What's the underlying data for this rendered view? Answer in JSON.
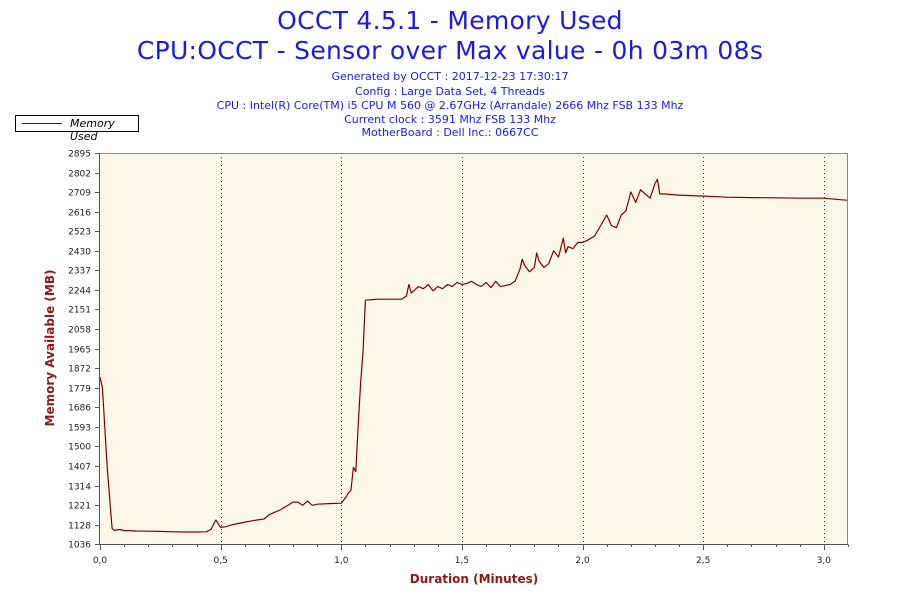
{
  "header": {
    "title": "OCCT 4.5.1 - Memory Used",
    "subtitle": "CPU:OCCT - Sensor over Max value - 0h 03m 08s",
    "info_lines": [
      "Generated by OCCT : 2017-12-23 17:30:17",
      "Config : Large Data Set, 4 Threads",
      "CPU : Intel(R) Core(TM) i5 CPU M 560 @ 2.67GHz (Arrandale) 2666 Mhz FSB 133 Mhz",
      "Current clock : 3591 Mhz FSB 133 Mhz",
      "MotherBoard : Dell Inc.: 0667CC"
    ]
  },
  "legend": {
    "label": "Memory Used"
  },
  "colors": {
    "title": "#1a1ae6",
    "series": "#800000",
    "axis_label": "#8b1a1a",
    "plot_background": "#fdf8e8"
  },
  "chart_data": {
    "type": "line",
    "title": "OCCT 4.5.1 - Memory Used",
    "xlabel": "Duration (Minutes)",
    "ylabel": "Memory Available (MB)",
    "xlim": [
      0,
      3.1
    ],
    "ylim": [
      1036,
      2895
    ],
    "x_ticks": [
      "0,0",
      "0,5",
      "1,0",
      "1,5",
      "2,0",
      "2,5",
      "3,0"
    ],
    "y_ticks": [
      "1036",
      "1128",
      "1221",
      "1314",
      "1407",
      "1500",
      "1593",
      "1686",
      "1779",
      "1872",
      "1965",
      "2058",
      "2151",
      "2244",
      "2337",
      "2430",
      "2523",
      "2616",
      "2709",
      "2802",
      "2895"
    ],
    "grid": "vertical dotted lines at major x ticks",
    "legend_position": "top-left",
    "series": [
      {
        "name": "Memory Used",
        "x": [
          0.0,
          0.01,
          0.03,
          0.05,
          0.06,
          0.08,
          0.1,
          0.15,
          0.2,
          0.25,
          0.3,
          0.35,
          0.4,
          0.44,
          0.46,
          0.48,
          0.5,
          0.52,
          0.55,
          0.6,
          0.65,
          0.68,
          0.7,
          0.75,
          0.8,
          0.82,
          0.84,
          0.86,
          0.88,
          0.9,
          0.95,
          1.0,
          1.02,
          1.03,
          1.04,
          1.05,
          1.06,
          1.07,
          1.08,
          1.09,
          1.1,
          1.15,
          1.2,
          1.25,
          1.27,
          1.28,
          1.29,
          1.3,
          1.32,
          1.34,
          1.36,
          1.38,
          1.4,
          1.42,
          1.44,
          1.46,
          1.48,
          1.5,
          1.52,
          1.54,
          1.56,
          1.58,
          1.6,
          1.62,
          1.64,
          1.66,
          1.7,
          1.72,
          1.74,
          1.75,
          1.76,
          1.78,
          1.8,
          1.81,
          1.82,
          1.84,
          1.86,
          1.88,
          1.9,
          1.92,
          1.93,
          1.94,
          1.96,
          1.98,
          2.0,
          2.02,
          2.05,
          2.08,
          2.1,
          2.12,
          2.14,
          2.16,
          2.18,
          2.2,
          2.22,
          2.24,
          2.26,
          2.28,
          2.3,
          2.31,
          2.32,
          2.34,
          2.4,
          2.5,
          2.6,
          2.7,
          2.8,
          2.9,
          3.0,
          3.05,
          3.1
        ],
        "values": [
          1830,
          1780,
          1400,
          1110,
          1100,
          1105,
          1100,
          1098,
          1097,
          1096,
          1094,
          1093,
          1093,
          1094,
          1105,
          1150,
          1115,
          1118,
          1128,
          1140,
          1150,
          1155,
          1175,
          1200,
          1235,
          1235,
          1220,
          1240,
          1220,
          1225,
          1228,
          1230,
          1260,
          1280,
          1290,
          1400,
          1380,
          1600,
          1800,
          1950,
          2195,
          2200,
          2200,
          2200,
          2215,
          2270,
          2230,
          2240,
          2260,
          2250,
          2270,
          2240,
          2260,
          2250,
          2270,
          2260,
          2280,
          2270,
          2275,
          2285,
          2270,
          2260,
          2280,
          2255,
          2285,
          2260,
          2270,
          2285,
          2340,
          2390,
          2360,
          2330,
          2350,
          2420,
          2380,
          2350,
          2370,
          2430,
          2400,
          2490,
          2420,
          2450,
          2440,
          2470,
          2470,
          2480,
          2500,
          2560,
          2600,
          2550,
          2540,
          2600,
          2620,
          2710,
          2660,
          2720,
          2700,
          2680,
          2750,
          2770,
          2700,
          2700,
          2695,
          2690,
          2685,
          2683,
          2682,
          2680,
          2680,
          2675,
          2670
        ]
      }
    ]
  }
}
